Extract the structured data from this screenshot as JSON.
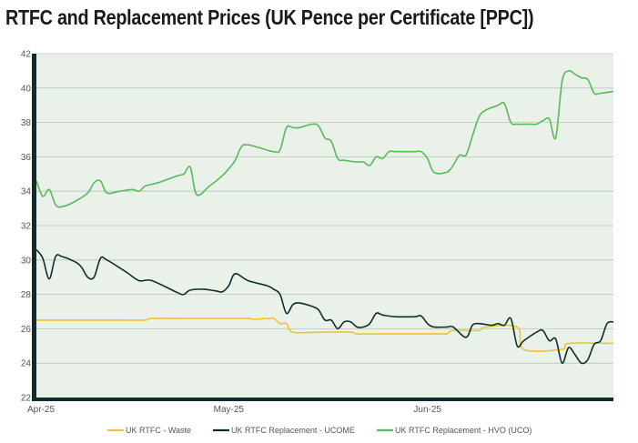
{
  "chart_data": {
    "type": "line",
    "title": "RTFC and Replacement Prices (UK Pence per Certificate [PPC])",
    "xlabel": "",
    "ylabel": "",
    "ylim": [
      22,
      42
    ],
    "yticks": [
      22,
      24,
      26,
      28,
      30,
      32,
      34,
      36,
      38,
      40,
      42
    ],
    "xlim": [
      "2025-04-01",
      "2025-06-30"
    ],
    "xticks": [
      {
        "date": "2025-04-01",
        "label": "Apr-25"
      },
      {
        "date": "2025-05-01",
        "label": "May-25"
      },
      {
        "date": "2025-06-01",
        "label": "Jun-25"
      }
    ],
    "grid": true,
    "legend_position": "bottom",
    "background_color": "#e9f1e9",
    "series": [
      {
        "name": "UK RTFC - Waste",
        "color": "#f5c230",
        "points": [
          [
            "2025-04-01",
            26.5
          ],
          [
            "2025-04-05",
            26.5
          ],
          [
            "2025-04-10",
            26.5
          ],
          [
            "2025-04-15",
            26.5
          ],
          [
            "2025-04-18",
            26.5
          ],
          [
            "2025-04-19",
            26.6
          ],
          [
            "2025-04-25",
            26.6
          ],
          [
            "2025-04-30",
            26.6
          ],
          [
            "2025-05-01",
            26.6
          ],
          [
            "2025-05-04",
            26.6
          ],
          [
            "2025-05-05",
            26.55
          ],
          [
            "2025-05-07",
            26.6
          ],
          [
            "2025-05-08",
            26.6
          ],
          [
            "2025-05-09",
            26.3
          ],
          [
            "2025-05-10",
            26.3
          ],
          [
            "2025-05-11",
            25.8
          ],
          [
            "2025-05-15",
            25.8
          ],
          [
            "2025-05-20",
            25.8
          ],
          [
            "2025-05-21",
            25.7
          ],
          [
            "2025-05-25",
            25.7
          ],
          [
            "2025-06-03",
            25.7
          ],
          [
            "2025-06-04",
            25.7
          ],
          [
            "2025-06-05",
            25.9
          ],
          [
            "2025-06-09",
            25.9
          ],
          [
            "2025-06-10",
            26.1
          ],
          [
            "2025-06-15",
            26.1
          ],
          [
            "2025-06-16",
            24.8
          ],
          [
            "2025-06-22",
            24.8
          ],
          [
            "2025-06-23",
            25.15
          ],
          [
            "2025-06-30",
            25.15
          ]
        ]
      },
      {
        "name": "UK RTFC Replacement - UCOME",
        "color": "#0f2e2b",
        "points": [
          [
            "2025-04-01",
            30.6
          ],
          [
            "2025-04-02",
            30.1
          ],
          [
            "2025-04-03",
            28.9
          ],
          [
            "2025-04-04",
            30.2
          ],
          [
            "2025-04-05",
            30.2
          ],
          [
            "2025-04-07",
            29.9
          ],
          [
            "2025-04-08",
            29.6
          ],
          [
            "2025-04-09",
            29.0
          ],
          [
            "2025-04-10",
            29.0
          ],
          [
            "2025-04-11",
            30.1
          ],
          [
            "2025-04-12",
            30.0
          ],
          [
            "2025-04-15",
            29.3
          ],
          [
            "2025-04-17",
            28.8
          ],
          [
            "2025-04-19",
            28.8
          ],
          [
            "2025-04-23",
            28.1
          ],
          [
            "2025-04-24",
            28.0
          ],
          [
            "2025-04-25",
            28.25
          ],
          [
            "2025-04-27",
            28.3
          ],
          [
            "2025-04-29",
            28.2
          ],
          [
            "2025-04-30",
            28.15
          ],
          [
            "2025-05-01",
            28.5
          ],
          [
            "2025-05-02",
            29.2
          ],
          [
            "2025-05-04",
            28.8
          ],
          [
            "2025-05-07",
            28.5
          ],
          [
            "2025-05-08",
            28.3
          ],
          [
            "2025-05-09",
            28.0
          ],
          [
            "2025-05-10",
            26.9
          ],
          [
            "2025-05-11",
            27.4
          ],
          [
            "2025-05-12",
            27.5
          ],
          [
            "2025-05-14",
            27.3
          ],
          [
            "2025-05-15",
            27.1
          ],
          [
            "2025-05-16",
            26.5
          ],
          [
            "2025-05-17",
            26.5
          ],
          [
            "2025-05-18",
            26.0
          ],
          [
            "2025-05-19",
            26.4
          ],
          [
            "2025-05-20",
            26.4
          ],
          [
            "2025-05-21",
            26.1
          ],
          [
            "2025-05-22",
            26.1
          ],
          [
            "2025-05-23",
            26.3
          ],
          [
            "2025-05-24",
            26.9
          ],
          [
            "2025-05-25",
            26.8
          ],
          [
            "2025-05-27",
            26.7
          ],
          [
            "2025-05-30",
            26.7
          ],
          [
            "2025-05-31",
            26.75
          ],
          [
            "2025-06-01",
            26.3
          ],
          [
            "2025-06-02",
            26.1
          ],
          [
            "2025-06-04",
            26.1
          ],
          [
            "2025-06-05",
            26.1
          ],
          [
            "2025-06-07",
            25.5
          ],
          [
            "2025-06-08",
            26.2
          ],
          [
            "2025-06-09",
            26.3
          ],
          [
            "2025-06-11",
            26.2
          ],
          [
            "2025-06-12",
            26.3
          ],
          [
            "2025-06-13",
            26.2
          ],
          [
            "2025-06-14",
            26.6
          ],
          [
            "2025-06-15",
            25.0
          ],
          [
            "2025-06-16",
            25.3
          ],
          [
            "2025-06-18",
            25.8
          ],
          [
            "2025-06-19",
            25.9
          ],
          [
            "2025-06-20",
            25.3
          ],
          [
            "2025-06-21",
            25.4
          ],
          [
            "2025-06-22",
            24.0
          ],
          [
            "2025-06-23",
            24.9
          ],
          [
            "2025-06-24",
            24.5
          ],
          [
            "2025-06-25",
            24.0
          ],
          [
            "2025-06-26",
            24.2
          ],
          [
            "2025-06-27",
            25.1
          ],
          [
            "2025-06-28",
            25.3
          ],
          [
            "2025-06-29",
            26.3
          ],
          [
            "2025-06-30",
            26.4
          ]
        ]
      },
      {
        "name": "UK RTFC Replacement - HVO (UCO)",
        "color": "#5cb85c",
        "points": [
          [
            "2025-04-01",
            34.6
          ],
          [
            "2025-04-02",
            33.7
          ],
          [
            "2025-04-03",
            34.1
          ],
          [
            "2025-04-04",
            33.2
          ],
          [
            "2025-04-05",
            33.1
          ],
          [
            "2025-04-07",
            33.4
          ],
          [
            "2025-04-09",
            33.9
          ],
          [
            "2025-04-10",
            34.5
          ],
          [
            "2025-04-11",
            34.6
          ],
          [
            "2025-04-12",
            33.9
          ],
          [
            "2025-04-14",
            34.0
          ],
          [
            "2025-04-16",
            34.1
          ],
          [
            "2025-04-17",
            34.0
          ],
          [
            "2025-04-18",
            34.3
          ],
          [
            "2025-04-20",
            34.5
          ],
          [
            "2025-04-23",
            34.9
          ],
          [
            "2025-04-24",
            35.0
          ],
          [
            "2025-04-25",
            35.4
          ],
          [
            "2025-04-26",
            33.8
          ],
          [
            "2025-04-28",
            34.3
          ],
          [
            "2025-04-30",
            34.9
          ],
          [
            "2025-05-01",
            35.3
          ],
          [
            "2025-05-02",
            35.8
          ],
          [
            "2025-05-03",
            36.6
          ],
          [
            "2025-05-04",
            36.7
          ],
          [
            "2025-05-06",
            36.5
          ],
          [
            "2025-05-08",
            36.3
          ],
          [
            "2025-05-09",
            36.4
          ],
          [
            "2025-05-10",
            37.7
          ],
          [
            "2025-05-11",
            37.7
          ],
          [
            "2025-05-12",
            37.7
          ],
          [
            "2025-05-14",
            37.9
          ],
          [
            "2025-05-15",
            37.8
          ],
          [
            "2025-05-16",
            37.1
          ],
          [
            "2025-05-17",
            36.9
          ],
          [
            "2025-05-18",
            35.9
          ],
          [
            "2025-05-19",
            35.8
          ],
          [
            "2025-05-21",
            35.7
          ],
          [
            "2025-05-22",
            35.7
          ],
          [
            "2025-05-23",
            35.5
          ],
          [
            "2025-05-24",
            36.0
          ],
          [
            "2025-05-25",
            35.9
          ],
          [
            "2025-05-26",
            36.3
          ],
          [
            "2025-05-27",
            36.3
          ],
          [
            "2025-05-30",
            36.3
          ],
          [
            "2025-05-31",
            36.3
          ],
          [
            "2025-06-01",
            35.9
          ],
          [
            "2025-06-02",
            35.1
          ],
          [
            "2025-06-04",
            35.1
          ],
          [
            "2025-06-05",
            35.5
          ],
          [
            "2025-06-06",
            36.1
          ],
          [
            "2025-06-07",
            36.1
          ],
          [
            "2025-06-08",
            37.2
          ],
          [
            "2025-06-09",
            38.3
          ],
          [
            "2025-06-10",
            38.7
          ],
          [
            "2025-06-12",
            39.0
          ],
          [
            "2025-06-13",
            39.1
          ],
          [
            "2025-06-14",
            38.0
          ],
          [
            "2025-06-15",
            37.9
          ],
          [
            "2025-06-17",
            37.9
          ],
          [
            "2025-06-18",
            37.9
          ],
          [
            "2025-06-19",
            38.1
          ],
          [
            "2025-06-20",
            38.2
          ],
          [
            "2025-06-21",
            37.1
          ],
          [
            "2025-06-22",
            40.4
          ],
          [
            "2025-06-23",
            41.0
          ],
          [
            "2025-06-24",
            40.8
          ],
          [
            "2025-06-25",
            40.6
          ],
          [
            "2025-06-26",
            40.5
          ],
          [
            "2025-06-27",
            39.7
          ],
          [
            "2025-06-28",
            39.7
          ],
          [
            "2025-06-30",
            39.8
          ]
        ]
      }
    ]
  }
}
